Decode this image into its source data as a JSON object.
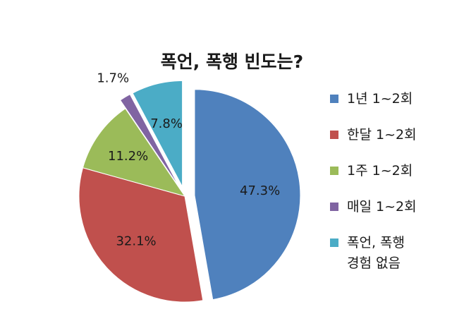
{
  "chart_data": {
    "type": "pie",
    "title": "폭언, 폭행 빈도는?",
    "slices": [
      {
        "label": "1년 1~2회",
        "value": 47.3,
        "value_label": "47.3%",
        "color": "#4f81bd",
        "exploded": true
      },
      {
        "label": "한달 1~2회",
        "value": 32.1,
        "value_label": "32.1%",
        "color": "#c0504d",
        "exploded": false
      },
      {
        "label": "1주 1~2회",
        "value": 11.2,
        "value_label": "11.2%",
        "color": "#9bbb59",
        "exploded": false
      },
      {
        "label": "매일 1~2회",
        "value": 1.7,
        "value_label": "1.7%",
        "color": "#8064a2",
        "exploded": true
      },
      {
        "label": "폭언, 폭행\n경험 없음",
        "value": 7.8,
        "value_label": "7.8%",
        "color": "#4bacc6",
        "exploded": true
      }
    ],
    "legend_position": "right",
    "grid": false
  }
}
